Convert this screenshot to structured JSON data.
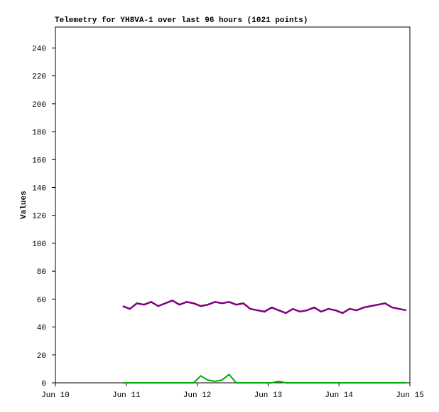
{
  "chart_data": {
    "type": "line",
    "title": "Telemetry for YH8VA-1 over last 96 hours (1021 points)",
    "y_label": "Values",
    "x": [
      10.95,
      11.05,
      11.15,
      11.25,
      11.35,
      11.45,
      11.55,
      11.65,
      11.75,
      11.85,
      11.95,
      12.05,
      12.15,
      12.25,
      12.35,
      12.45,
      12.55,
      12.65,
      12.75,
      12.85,
      12.95,
      13.05,
      13.15,
      13.25,
      13.35,
      13.45,
      13.55,
      13.65,
      13.75,
      13.85,
      13.95,
      14.05,
      14.15,
      14.25,
      14.35,
      14.45,
      14.55,
      14.65,
      14.75,
      14.85,
      14.95
    ],
    "series": [
      {
        "color": "#800080",
        "values": [
          55,
          53,
          57,
          56,
          58,
          55,
          57,
          59,
          56,
          58,
          57,
          55,
          56,
          58,
          57,
          58,
          56,
          57,
          53,
          52,
          51,
          54,
          52,
          50,
          53,
          51,
          52,
          54,
          51,
          53,
          52,
          50,
          53,
          52,
          54,
          55,
          56,
          57,
          54,
          53,
          52
        ]
      },
      {
        "color": "#00aa00",
        "values": [
          0,
          0,
          0,
          0,
          0,
          0,
          0,
          0,
          0,
          0,
          0,
          5,
          2,
          1,
          2,
          6,
          0,
          0,
          0,
          0,
          0,
          0,
          1,
          0,
          0,
          0,
          0,
          0,
          0,
          0,
          0,
          0,
          0,
          0,
          0,
          0,
          0,
          0,
          0,
          0,
          0
        ]
      }
    ],
    "xlim": [
      10,
      15
    ],
    "xticks": [
      {
        "value": 10,
        "label": "Jun 10"
      },
      {
        "value": 11,
        "label": "Jun 11"
      },
      {
        "value": 12,
        "label": "Jun 12"
      },
      {
        "value": 13,
        "label": "Jun 13"
      },
      {
        "value": 14,
        "label": "Jun 14"
      },
      {
        "value": 15,
        "label": "Jun 15"
      }
    ],
    "ylim": [
      0,
      255
    ],
    "yticks": [
      0,
      20,
      40,
      60,
      80,
      100,
      120,
      140,
      160,
      180,
      200,
      220,
      240
    ]
  }
}
